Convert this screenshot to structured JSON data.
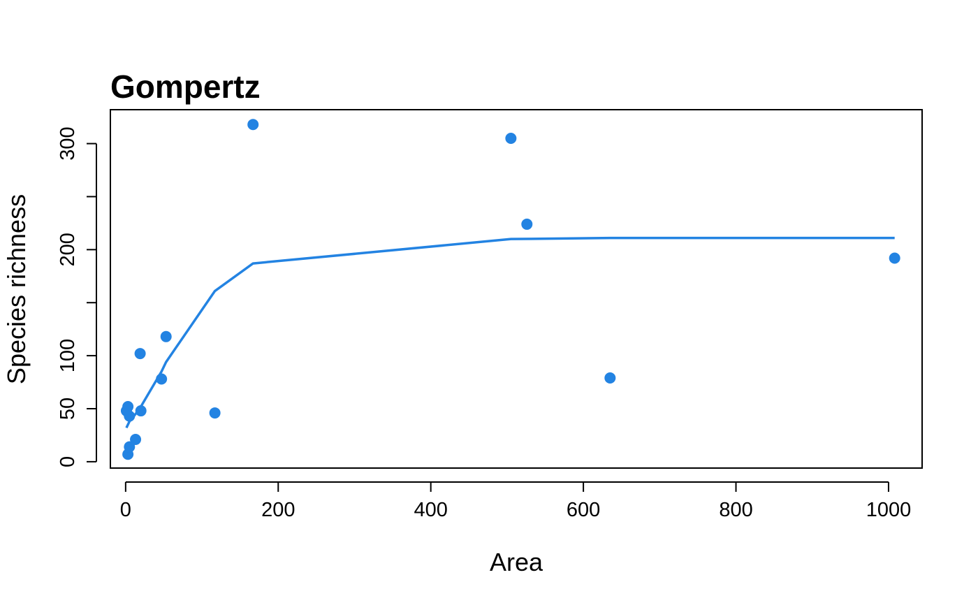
{
  "chart_data": {
    "type": "scatter",
    "title": "Gompertz",
    "xlabel": "Area",
    "ylabel": "Species richness",
    "xlim": [
      -20,
      1044
    ],
    "ylim": [
      -6,
      332
    ],
    "x_ticks": [
      0,
      200,
      400,
      600,
      800,
      1000
    ],
    "y_ticks": [
      0,
      50,
      100,
      150,
      200,
      250,
      300
    ],
    "y_tick_labels": [
      "0",
      "50",
      "100",
      "",
      "200",
      "",
      "300"
    ],
    "color": "#2383E2",
    "grid": false,
    "legend": "none",
    "points": [
      {
        "x": 1,
        "y": 48
      },
      {
        "x": 3,
        "y": 52
      },
      {
        "x": 5,
        "y": 43
      },
      {
        "x": 3,
        "y": 7
      },
      {
        "x": 5,
        "y": 14
      },
      {
        "x": 13,
        "y": 21
      },
      {
        "x": 19,
        "y": 102
      },
      {
        "x": 20,
        "y": 48
      },
      {
        "x": 47,
        "y": 78
      },
      {
        "x": 53,
        "y": 118
      },
      {
        "x": 117,
        "y": 46
      },
      {
        "x": 167,
        "y": 318
      },
      {
        "x": 505,
        "y": 305
      },
      {
        "x": 526,
        "y": 224
      },
      {
        "x": 635,
        "y": 79
      },
      {
        "x": 1008,
        "y": 192
      }
    ],
    "fit_line": {
      "x": [
        1,
        5,
        13,
        20,
        47,
        53,
        117,
        167,
        505,
        635,
        1008
      ],
      "y": [
        32,
        38,
        45,
        52,
        85,
        94,
        161,
        187,
        210,
        211,
        211
      ]
    }
  }
}
